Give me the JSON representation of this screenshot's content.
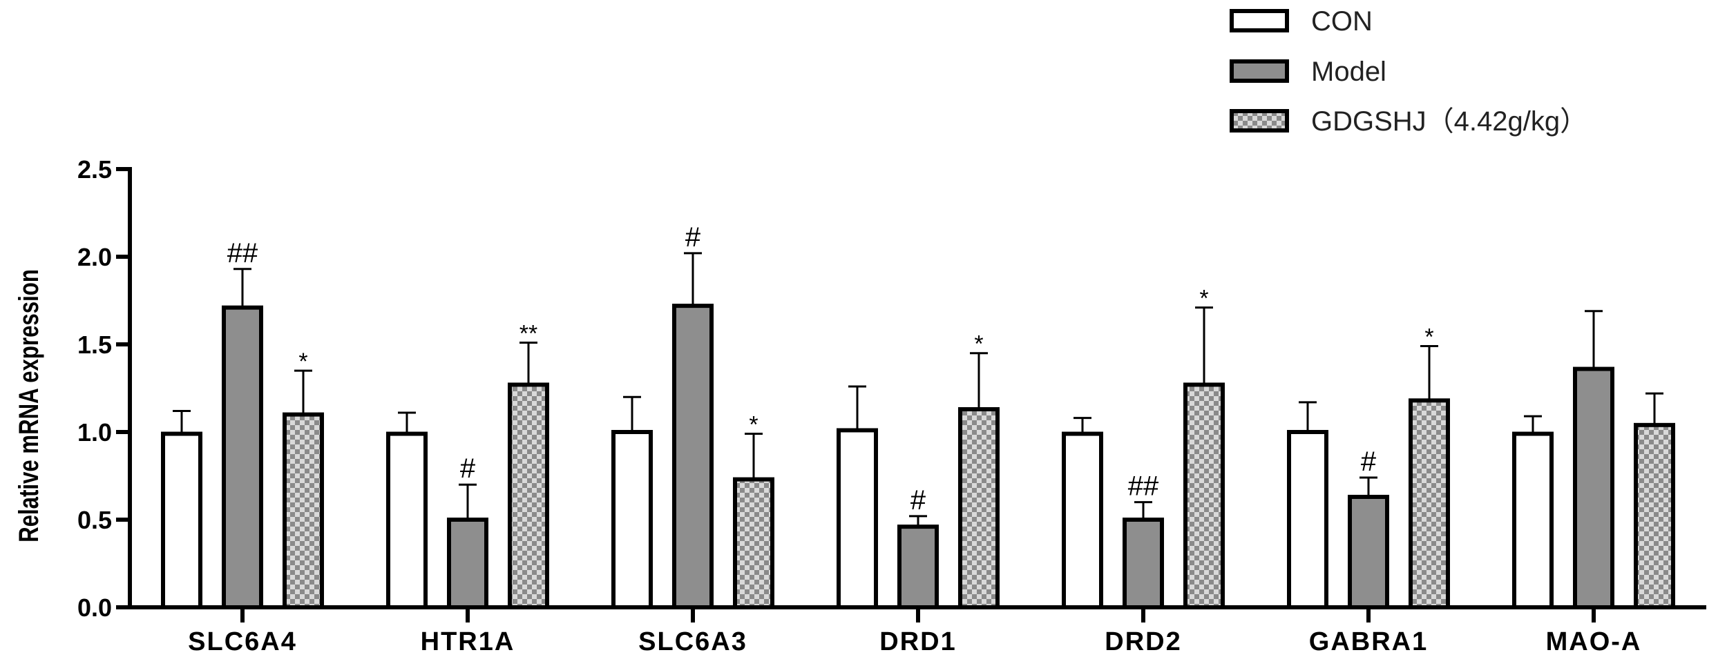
{
  "chart_data": {
    "type": "bar",
    "ylabel": "Relative mRNA expression",
    "ylim": [
      0,
      2.5
    ],
    "yticks": [
      "0.0",
      "0.5",
      "1.0",
      "1.5",
      "2.0",
      "2.5"
    ],
    "categories": [
      "SLC6A4",
      "HTR1A",
      "SLC6A3",
      "DRD1",
      "DRD2",
      "GABRA1",
      "MAO-A"
    ],
    "legend_position": "top-right",
    "series": [
      {
        "name": "CON",
        "fill": "#ffffff",
        "pattern": "none",
        "values": [
          0.99,
          0.99,
          1.0,
          1.01,
          0.99,
          1.0,
          0.99
        ],
        "errors": [
          0.13,
          0.12,
          0.2,
          0.25,
          0.09,
          0.17,
          0.1
        ],
        "annotations": [
          "",
          "",
          "",
          "",
          "",
          "",
          ""
        ]
      },
      {
        "name": "Model",
        "fill": "#8e8e8e",
        "pattern": "none",
        "values": [
          1.71,
          0.5,
          1.72,
          0.46,
          0.5,
          0.63,
          1.36
        ],
        "errors": [
          0.22,
          0.2,
          0.3,
          0.06,
          0.1,
          0.11,
          0.33
        ],
        "annotations": [
          "##",
          "#",
          "#",
          "#",
          "##",
          "#",
          ""
        ]
      },
      {
        "name": "GDGSHJ（4.42g/kg）",
        "fill": "#bdbdbd",
        "pattern": "checker",
        "values": [
          1.1,
          1.27,
          0.73,
          1.13,
          1.27,
          1.18,
          1.04
        ],
        "errors": [
          0.25,
          0.24,
          0.26,
          0.32,
          0.44,
          0.31,
          0.18
        ],
        "annotations": [
          "*",
          "**",
          "*",
          "*",
          "*",
          "*",
          ""
        ]
      }
    ]
  }
}
